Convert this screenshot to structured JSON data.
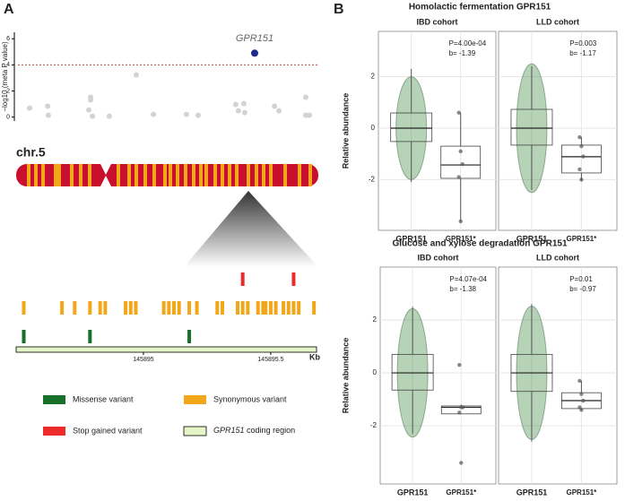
{
  "panel_labels": [
    "A",
    "B"
  ],
  "chromosome_label": "chr.5",
  "figure_titles": [
    "Homolactic fermentation GPR151",
    "Glucose and xylose degradation GPR151"
  ],
  "chart_data": [
    {
      "type": "scatter",
      "ylabel": "−log10 (meta P value)",
      "xlim": [
        0,
        100
      ],
      "ylim": [
        -0.3,
        6.5
      ],
      "yticks": [
        0,
        2,
        4,
        6
      ],
      "threshold": {
        "value": 4,
        "color": "#b5473a"
      },
      "series": [
        {
          "color": "#d3d3d3",
          "x": [
            3.9,
            9.9,
            10.1,
            24.2,
            24.2,
            23.6,
            24.8,
            30.4,
            39.4,
            45.1,
            56.1,
            60,
            72.5,
            73.4,
            75.2,
            75.5,
            85.4,
            86.9,
            95.8,
            95.8,
            97
          ],
          "values": [
            0.69,
            0.83,
            0.14,
            1.52,
            1.31,
            0.55,
            0.07,
            0.07,
            3.24,
            0.21,
            0.21,
            0.14,
            0.97,
            0.48,
            1.03,
            0.34,
            0.83,
            0.48,
            1.52,
            0.14,
            0.14
          ]
        },
        {
          "name": "GPR151",
          "color": "#1f2a8c",
          "x": [
            78.8
          ],
          "values": [
            4.9
          ]
        }
      ]
    },
    {
      "type": "variants",
      "xlim": [
        145894.5,
        145895.68
      ],
      "xticks": [
        145895,
        145895.5
      ],
      "unit": "Kb",
      "series": [
        {
          "name": "Stop gained variant",
          "color": "#ee2a2a",
          "values": [
            145895.39,
            145895.59
          ]
        },
        {
          "name": "Synonymous variant",
          "color": "#f2a71b",
          "values": [
            145894.53,
            145894.68,
            145894.73,
            145894.79,
            145894.83,
            145894.85,
            145894.93,
            145894.95,
            145894.97,
            145895.08,
            145895.1,
            145895.12,
            145895.14,
            145895.18,
            145895.21,
            145895.29,
            145895.31,
            145895.37,
            145895.39,
            145895.41,
            145895.45,
            145895.47,
            145895.48,
            145895.5,
            145895.52,
            145895.55,
            145895.57,
            145895.59,
            145895.61,
            145895.67
          ]
        },
        {
          "name": "Missense variant",
          "color": "#16702a",
          "values": [
            145894.53,
            145894.79,
            145895.18
          ]
        }
      ],
      "coding_region": {
        "gene": "GPR151",
        "text": "coding region",
        "color": "#e4f5c8"
      }
    },
    {
      "type": "box",
      "title": "IBD cohort",
      "ylabel": "Relative abundance",
      "categories": [
        "GPR151",
        "GPR151*"
      ],
      "ylim": [
        -3.97,
        3.76
      ],
      "yticks": [
        -2,
        0,
        2
      ],
      "annotations": [
        "P=4.00e-04",
        "b= -1.39"
      ],
      "boxes": [
        {
          "whisker_low": -2.1,
          "q1": -0.52,
          "median": 0,
          "q3": 0.59,
          "whisker_high": 2.3
        },
        {
          "whisker_low": -3.62,
          "q1": -1.95,
          "median": -1.43,
          "q3": -0.7,
          "whisker_high": 0.6,
          "points": [
            0.6,
            -0.9,
            -1.4,
            -1.9,
            -3.62
          ]
        }
      ]
    },
    {
      "type": "box",
      "title": "LLD cohort",
      "categories": [
        "GPR151",
        "GPR151*"
      ],
      "ylim": [
        -3.97,
        3.76
      ],
      "yticks": [
        -2,
        0,
        2
      ],
      "annotations": [
        "P=0.003",
        "b= -1.17"
      ],
      "boxes": [
        {
          "whisker_low": -2.4,
          "q1": -0.66,
          "median": 0,
          "q3": 0.73,
          "whisker_high": 2.4
        },
        {
          "whisker_low": -2.05,
          "q1": -1.74,
          "median": -1.11,
          "q3": -0.66,
          "whisker_high": -0.35,
          "points": [
            -0.35,
            -0.7,
            -1.1,
            -1.6,
            -2.0
          ]
        }
      ]
    },
    {
      "type": "box",
      "title": "IBD cohort",
      "ylabel": "Relative abundance",
      "categories": [
        "GPR151",
        "GPR151*"
      ],
      "ylim": [
        -4.2,
        4.0
      ],
      "yticks": [
        -2,
        0,
        2
      ],
      "annotations": [
        "P=4.07e-04",
        "b= -1.38"
      ],
      "boxes": [
        {
          "whisker_low": -2.3,
          "q1": -0.65,
          "median": 0,
          "q3": 0.7,
          "whisker_high": 2.5
        },
        {
          "whisker_low": -1.55,
          "q1": -1.55,
          "median": -1.3,
          "q3": -1.25,
          "whisker_high": -1.2,
          "points": [
            0.3,
            -1.3,
            -1.3,
            -1.5,
            -3.4
          ]
        }
      ]
    },
    {
      "type": "box",
      "title": "LLD cohort",
      "categories": [
        "GPR151",
        "GPR151*"
      ],
      "ylim": [
        -4.2,
        4.0
      ],
      "yticks": [
        -2,
        0,
        2
      ],
      "annotations": [
        "P=0.01",
        "b= -0.97"
      ],
      "boxes": [
        {
          "whisker_low": -2.6,
          "q1": -0.7,
          "median": 0,
          "q3": 0.7,
          "whisker_high": 2.6
        },
        {
          "whisker_low": -1.4,
          "q1": -1.35,
          "median": -1.05,
          "q3": -0.75,
          "whisker_high": -0.3,
          "points": [
            -0.3,
            -0.8,
            -1.05,
            -1.3,
            -1.4
          ]
        }
      ]
    }
  ]
}
